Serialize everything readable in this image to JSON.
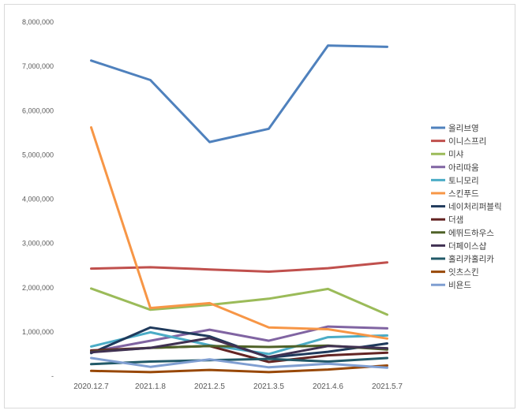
{
  "chart_data": {
    "type": "line",
    "title": "",
    "xlabel": "",
    "ylabel": "",
    "ylim": [
      0,
      8000000
    ],
    "ytick_step": 1000000,
    "zero_tick_label": "-",
    "categories": [
      "2020.12.7",
      "2021.1.8",
      "2021.2.5",
      "2021.3.5",
      "2021.4.6",
      "2021.5.7"
    ],
    "legend_position": "right",
    "series": [
      {
        "name": "올리브영",
        "color": "#4f81bd",
        "values": [
          7130000,
          6690000,
          5290000,
          5590000,
          7470000,
          7440000
        ]
      },
      {
        "name": "이니스프리",
        "color": "#c0504d",
        "values": [
          2430000,
          2460000,
          2410000,
          2360000,
          2440000,
          2570000
        ]
      },
      {
        "name": "미샤",
        "color": "#9bbb59",
        "values": [
          1980000,
          1500000,
          1610000,
          1750000,
          1970000,
          1390000
        ]
      },
      {
        "name": "아리따움",
        "color": "#8064a2",
        "values": [
          550000,
          800000,
          1050000,
          800000,
          1120000,
          1080000
        ]
      },
      {
        "name": "토니모리",
        "color": "#4bacc6",
        "values": [
          670000,
          990000,
          700000,
          500000,
          880000,
          920000
        ]
      },
      {
        "name": "스킨푸드",
        "color": "#f79646",
        "values": [
          5620000,
          1540000,
          1650000,
          1100000,
          1060000,
          850000
        ]
      },
      {
        "name": "네이처리퍼블릭",
        "color": "#1f3a5c",
        "values": [
          520000,
          1100000,
          900000,
          420000,
          550000,
          740000
        ]
      },
      {
        "name": "더샘",
        "color": "#632423",
        "values": [
          580000,
          640000,
          680000,
          320000,
          470000,
          530000
        ]
      },
      {
        "name": "에뛰드하우스",
        "color": "#4f6228",
        "values": [
          550000,
          640000,
          680000,
          660000,
          690000,
          600000
        ]
      },
      {
        "name": "더페이스샵",
        "color": "#403152",
        "values": [
          540000,
          640000,
          860000,
          430000,
          680000,
          630000
        ]
      },
      {
        "name": "홀리카홀리카",
        "color": "#215968",
        "values": [
          270000,
          330000,
          360000,
          390000,
          330000,
          410000
        ]
      },
      {
        "name": "잇츠스킨",
        "color": "#984807",
        "values": [
          120000,
          90000,
          140000,
          90000,
          150000,
          240000
        ]
      },
      {
        "name": "비욘드",
        "color": "#7f9ed1",
        "values": [
          410000,
          210000,
          380000,
          200000,
          280000,
          190000
        ]
      }
    ]
  }
}
